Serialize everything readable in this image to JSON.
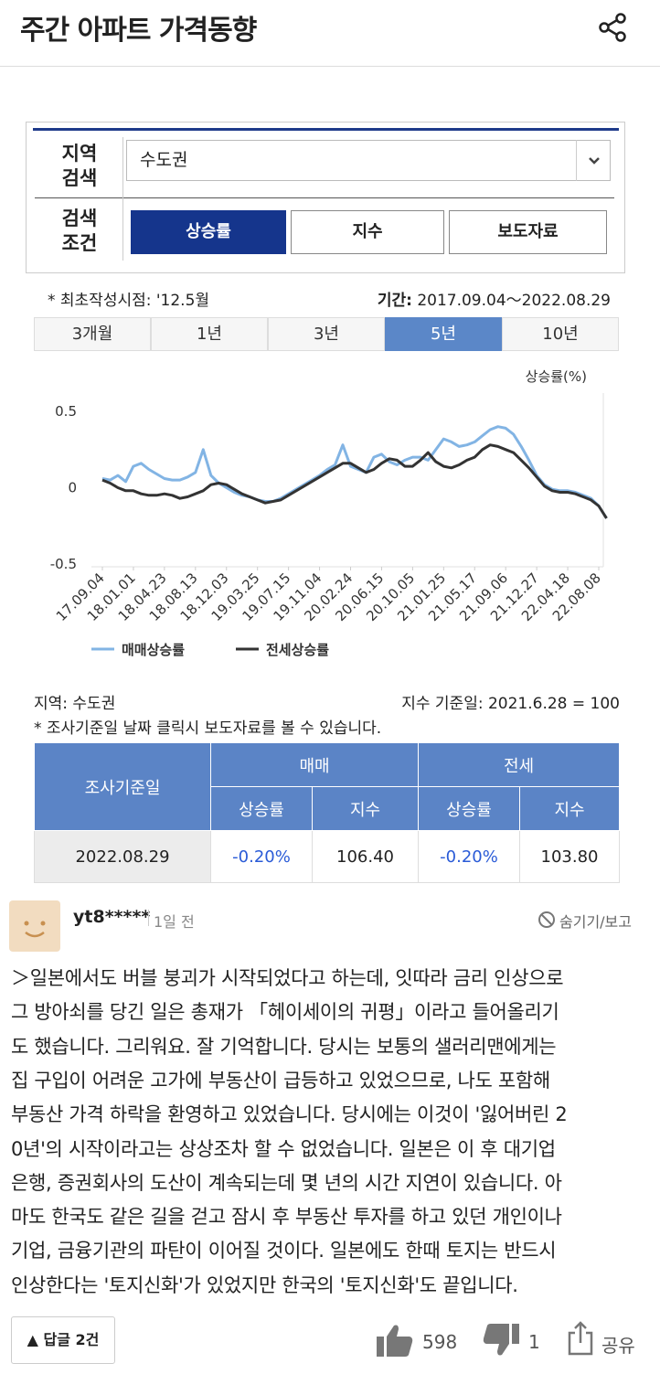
{
  "header": {
    "title": "주간 아파트 가격동향"
  },
  "search": {
    "region_label": [
      "지역",
      "검색"
    ],
    "region_value": "수도권",
    "condition_label": [
      "검색",
      "조건"
    ],
    "buttons": [
      "상승률",
      "지수",
      "보도자료"
    ]
  },
  "info": {
    "first_date": "* 최초작성시점: '12.5월",
    "period_label": "기간:",
    "period": "2017.09.04～2022.08.29"
  },
  "tabs": [
    "3개월",
    "1년",
    "3년",
    "5년",
    "10년"
  ],
  "chart_data": {
    "type": "line",
    "y_label": "상승률(%)",
    "categories": [
      "17.09.04",
      null,
      null,
      null,
      "18.01.01",
      null,
      null,
      null,
      "18.04.23",
      null,
      null,
      null,
      "18.08.13",
      null,
      null,
      null,
      "18.12.03",
      null,
      null,
      null,
      "19.03.25",
      null,
      null,
      null,
      "19.07.15",
      null,
      null,
      null,
      "19.11.04",
      null,
      null,
      null,
      "20.02.24",
      null,
      null,
      null,
      "20.06.15",
      null,
      null,
      null,
      "20.10.05",
      null,
      null,
      null,
      "21.01.25",
      null,
      null,
      null,
      "21.05.17",
      null,
      null,
      null,
      "21.09.06",
      null,
      null,
      null,
      "21.12.27",
      null,
      null,
      null,
      "22.04.18",
      null,
      null,
      null,
      "22.08.08",
      null
    ],
    "series": [
      {
        "name": "매매상승률",
        "color": "#82b4e4",
        "values": [
          0.06,
          0.05,
          0.08,
          0.04,
          0.14,
          0.16,
          0.12,
          0.09,
          0.06,
          0.05,
          0.05,
          0.07,
          0.1,
          0.25,
          0.08,
          0.03,
          0.0,
          -0.03,
          -0.05,
          -0.06,
          -0.08,
          -0.09,
          -0.09,
          -0.07,
          -0.04,
          -0.01,
          0.02,
          0.05,
          0.08,
          0.12,
          0.15,
          0.28,
          0.14,
          0.12,
          0.1,
          0.2,
          0.22,
          0.17,
          0.15,
          0.18,
          0.2,
          0.2,
          0.18,
          0.25,
          0.32,
          0.3,
          0.27,
          0.28,
          0.3,
          0.34,
          0.38,
          0.4,
          0.39,
          0.35,
          0.27,
          0.18,
          0.08,
          0.02,
          -0.01,
          -0.02,
          -0.02,
          -0.03,
          -0.05,
          -0.07,
          -0.12,
          -0.2
        ]
      },
      {
        "name": "전세상승률",
        "color": "#333333",
        "values": [
          0.05,
          0.03,
          0.0,
          -0.02,
          -0.02,
          -0.04,
          -0.05,
          -0.05,
          -0.04,
          -0.05,
          -0.07,
          -0.06,
          -0.04,
          -0.02,
          0.02,
          0.03,
          0.02,
          -0.01,
          -0.04,
          -0.06,
          -0.08,
          -0.1,
          -0.09,
          -0.08,
          -0.05,
          -0.02,
          0.01,
          0.04,
          0.07,
          0.1,
          0.13,
          0.16,
          0.16,
          0.13,
          0.1,
          0.12,
          0.16,
          0.19,
          0.18,
          0.14,
          0.14,
          0.18,
          0.23,
          0.17,
          0.14,
          0.13,
          0.15,
          0.18,
          0.2,
          0.25,
          0.28,
          0.27,
          0.25,
          0.23,
          0.18,
          0.13,
          0.07,
          0.01,
          -0.02,
          -0.03,
          -0.03,
          -0.04,
          -0.06,
          -0.08,
          -0.12,
          -0.2
        ]
      }
    ],
    "ylim": [
      -0.5,
      0.5
    ],
    "yticks": [
      0.5,
      0,
      -0.5
    ],
    "grid": false
  },
  "notes": {
    "region": "지역: 수도권",
    "index_base": "지수 기준일: 2021.6.28 = 100",
    "click": "* 조사기준일 날짜 클릭시 보도자료를 볼 수 있습니다."
  },
  "table": {
    "date_header": "조사기준일",
    "groups": [
      "매매",
      "전세"
    ],
    "subheaders": [
      "상승률",
      "지수",
      "상승률",
      "지수"
    ],
    "rows": [
      [
        "2022.08.29",
        "-0.20%",
        "106.40",
        "-0.20%",
        "103.80"
      ]
    ]
  },
  "comment": {
    "user": "yt8*****",
    "time": "1일 전",
    "hide": "숨기기/보고",
    "lines": [
      "＞일본에서도 버블 붕괴가 시작되었다고 하는데, 잇따라 금리 인상으로",
      "그 방아쇠를 당긴 일은 총재가 「헤이세이의 귀평」이라고 들어올리기",
      "도 했습니다. 그리워요. 잘 기억합니다. 당시는 보통의 샐러리맨에게는",
      "집 구입이 어려운 고가에 부동산이 급등하고 있었으므로, 나도 포함해",
      "부동산 가격 하락을 환영하고 있었습니다. 당시에는 이것이 '잃어버린 2",
      "0년'의 시작이라고는 상상조차 할 수 없었습니다. 일본은 이 후 대기업",
      "은행, 증권회사의 도산이 계속되는데 몇 년의 시간 지연이 있습니다. 아",
      "마도 한국도 같은 길을 걷고 잠시 후 부동산 투자를 하고 있던 개인이나",
      "기업, 금융기관의 파탄이 이어질 것이다. 일본에도 한때 토지는 반드시",
      "인상한다는 '토지신화'가 있었지만 한국의 '토지신화'도 끝입니다."
    ],
    "reply": "답글 2건",
    "likes": "598",
    "dislikes": "1",
    "share": "공유"
  }
}
